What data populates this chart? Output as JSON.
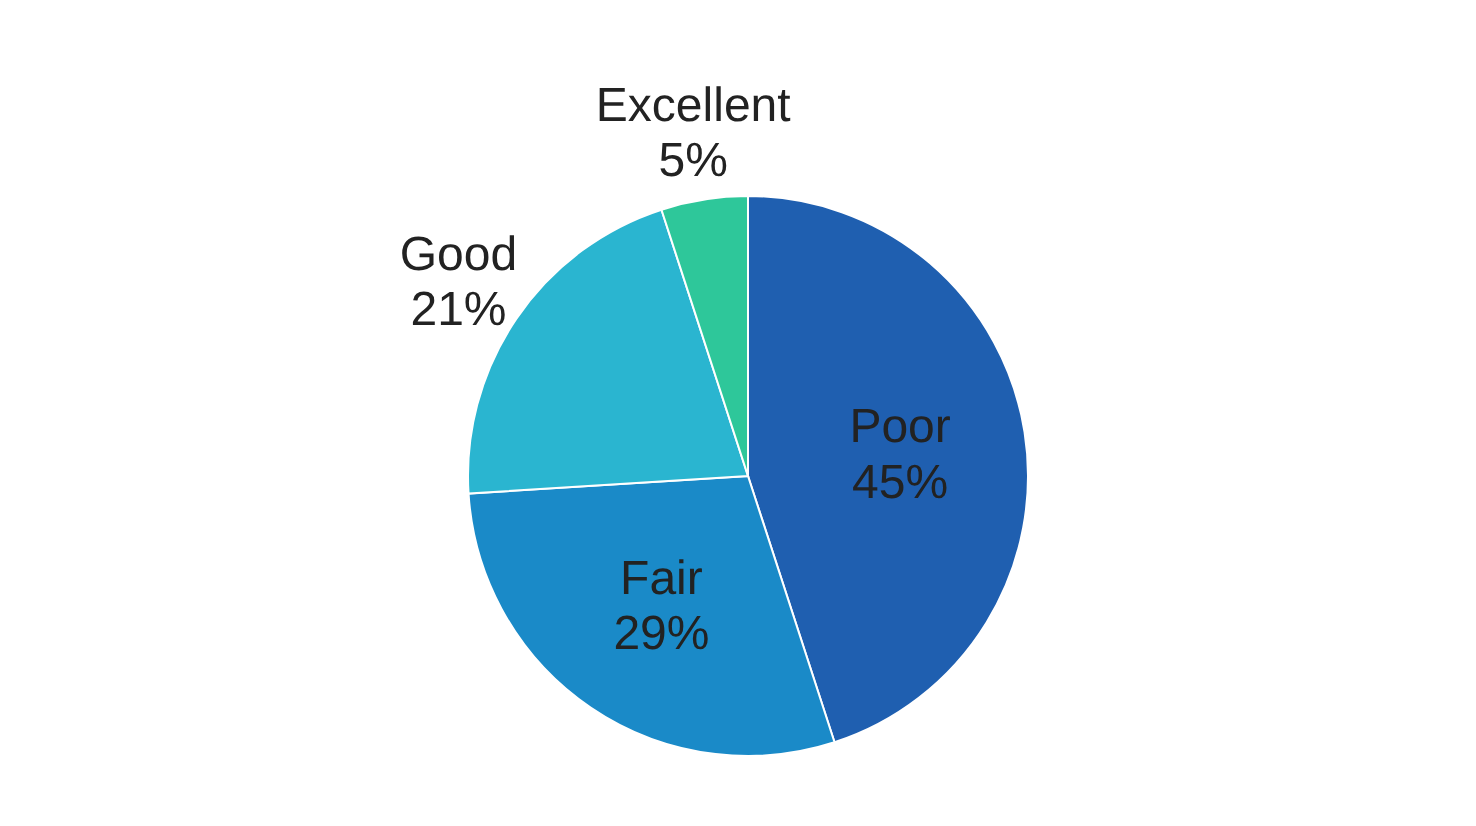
{
  "chart_data": {
    "type": "pie",
    "categories": [
      "Poor",
      "Fair",
      "Good",
      "Excellent"
    ],
    "values": [
      45,
      29,
      21,
      5
    ],
    "value_labels": [
      "45%",
      "29%",
      "21%",
      "5%"
    ],
    "colors": [
      "#1f5fb0",
      "#1a8ac8",
      "#2ab5d0",
      "#2ec79a"
    ]
  }
}
